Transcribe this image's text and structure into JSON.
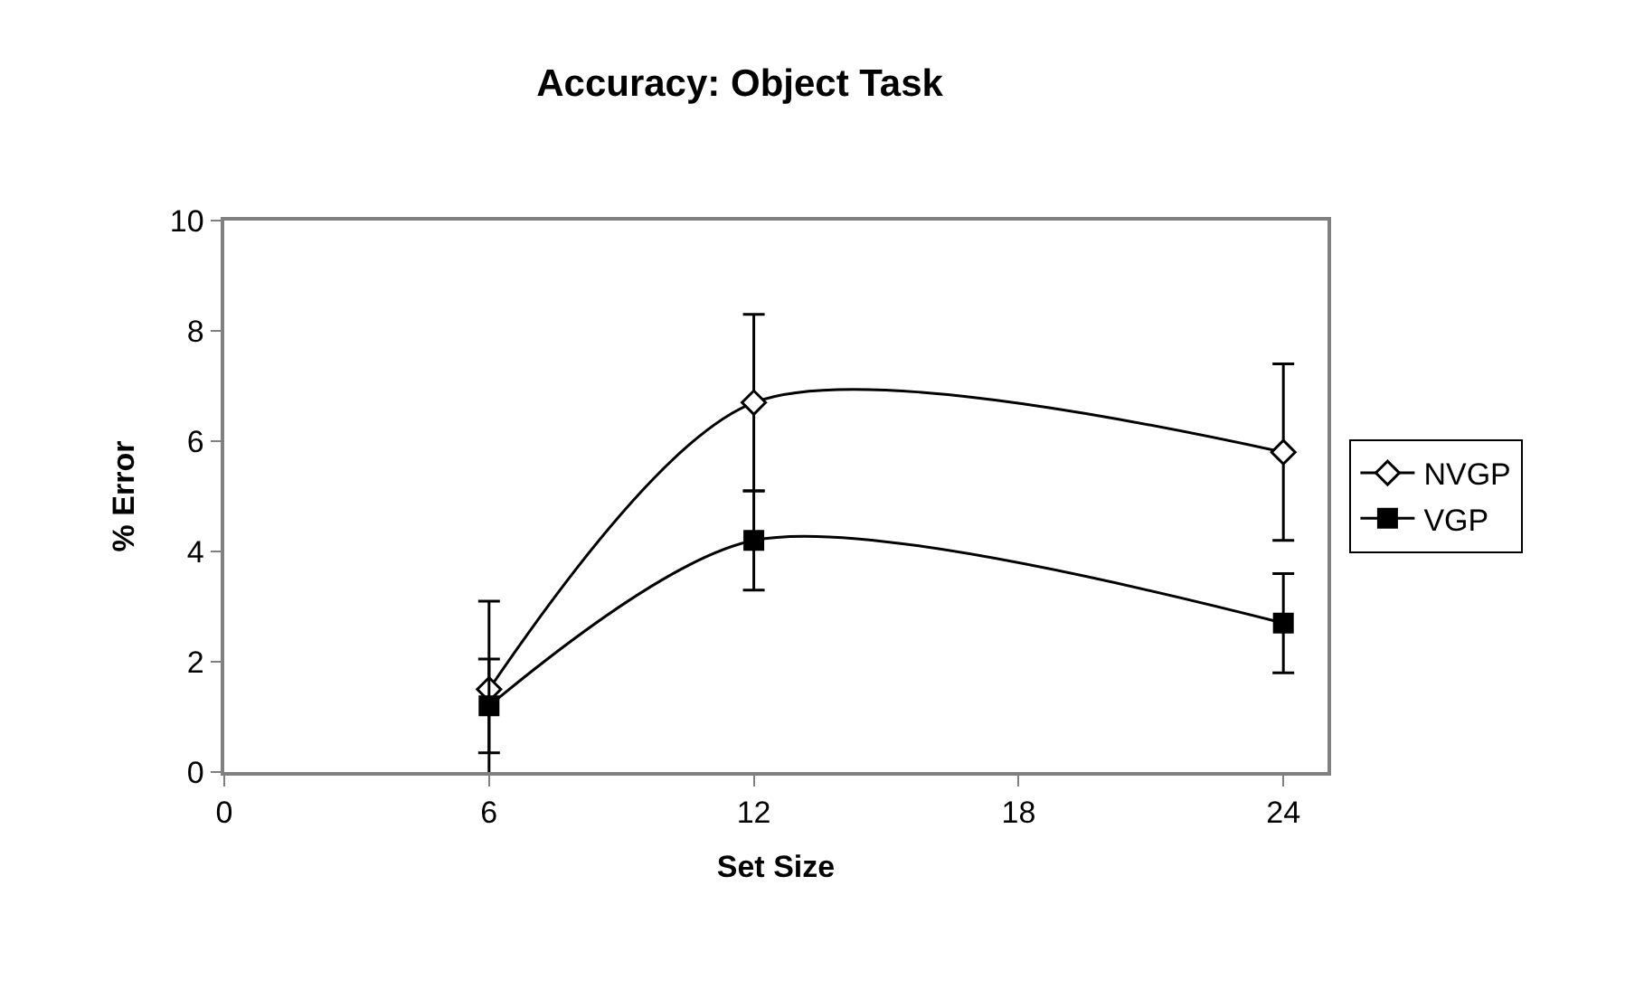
{
  "chart_data": {
    "type": "line",
    "title": "Accuracy: Object Task",
    "xlabel": "Set Size",
    "ylabel": "% Error",
    "x": [
      6,
      12,
      24
    ],
    "series": [
      {
        "name": "NVGP",
        "color": "#000000",
        "marker": "diamond",
        "values": [
          1.5,
          6.7,
          5.8
        ],
        "errors": [
          1.6,
          1.6,
          1.6
        ]
      },
      {
        "name": "VGP",
        "color": "#000000",
        "marker": "square",
        "values": [
          1.2,
          4.2,
          2.7
        ],
        "errors": [
          0.85,
          0.9,
          0.9
        ]
      }
    ],
    "xlim": [
      0,
      25
    ],
    "xticks": [
      0,
      6,
      12,
      18,
      24
    ],
    "ylim": [
      0,
      10
    ],
    "yticks": [
      0,
      2,
      4,
      6,
      8,
      10
    ],
    "legend": "right",
    "line_style": "solid"
  }
}
